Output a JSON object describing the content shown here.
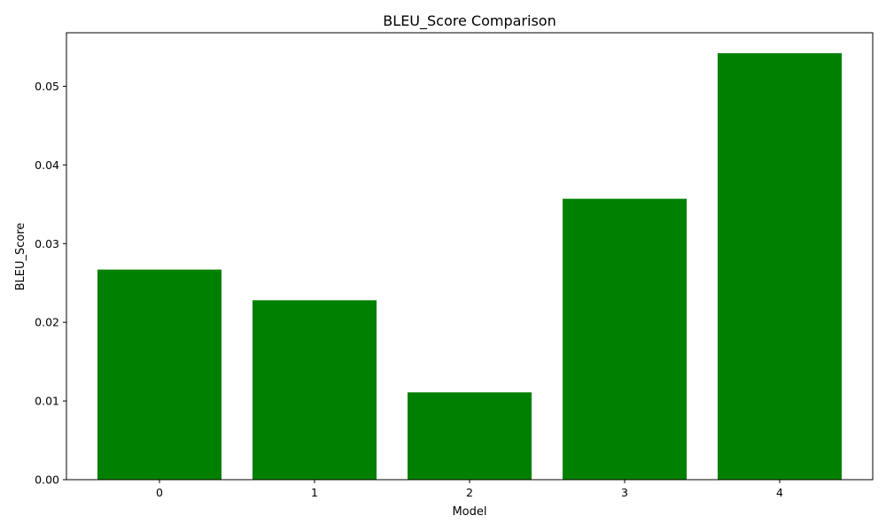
{
  "chart_data": {
    "type": "bar",
    "title": "BLEU_Score Comparison",
    "xlabel": "Model",
    "ylabel": "BLEU_Score",
    "categories": [
      "0",
      "1",
      "2",
      "3",
      "4"
    ],
    "values": [
      0.0267,
      0.0228,
      0.0111,
      0.0357,
      0.0542
    ],
    "ylim": [
      0,
      0.0568
    ],
    "yticks": [
      0.0,
      0.01,
      0.02,
      0.03,
      0.04,
      0.05
    ],
    "ytick_labels": [
      "0.00",
      "0.01",
      "0.02",
      "0.03",
      "0.04",
      "0.05"
    ],
    "bar_color": "#008000",
    "grid": false,
    "legend": "none"
  }
}
